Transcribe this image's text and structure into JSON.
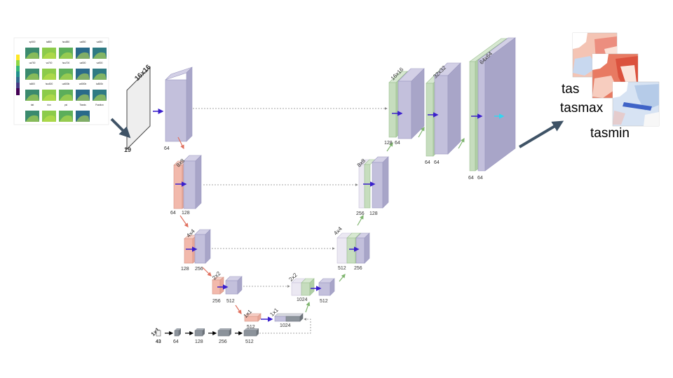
{
  "input": {
    "panel_titles": [
      "sp500",
      "ta850",
      "hus850",
      "ua850",
      "va850",
      "ua700",
      "va700",
      "hus700",
      "ua500",
      "va500",
      "ta500",
      "hus500",
      "ua500b",
      "va500b",
      "ta500b",
      "rlat",
      "rlon",
      "psl",
      "Tlands",
      "Fraction"
    ],
    "size_label": "16x16",
    "channels": "19"
  },
  "encoder": [
    {
      "res": "",
      "in_ch": "64",
      "out_ch": ""
    },
    {
      "res": "8x8",
      "in_ch": "64",
      "out_ch": "128"
    },
    {
      "res": "4x4",
      "in_ch": "128",
      "out_ch": "256"
    },
    {
      "res": "2x2",
      "in_ch": "256",
      "out_ch": "512"
    },
    {
      "res": "1x1",
      "in_ch": "512",
      "out_ch": ""
    }
  ],
  "bottleneck": {
    "res": "1x1",
    "ch": "1024"
  },
  "decoder": [
    {
      "res": "2x2",
      "in_ch": "1024",
      "out_ch": "512"
    },
    {
      "res": "4x4",
      "in_ch": "512",
      "out_ch": "256"
    },
    {
      "res": "8x8",
      "in_ch": "256",
      "out_ch": "128"
    },
    {
      "res": "16x16",
      "in_ch": "128",
      "out_ch": "64"
    },
    {
      "res": "32x32",
      "in_ch": "64",
      "out_ch": "64"
    },
    {
      "res": "64x64",
      "in_ch": "64",
      "out_ch": "64"
    }
  ],
  "mlp": {
    "res": "1x1",
    "input_ch": "43",
    "layers": [
      "64",
      "128",
      "256",
      "512"
    ]
  },
  "outputs": [
    "tas",
    "tasmax",
    "tasmin"
  ],
  "colors": {
    "blue_block": "#c3c0dc",
    "pink_block": "#f2b9ac",
    "green_block": "#c6ddbe",
    "gray_block": "#8c939b",
    "conv_arrow": "#3a1fcc",
    "down_arrow": "#e0705e",
    "up_arrow": "#7fb56f",
    "big_arrow": "#3f5366"
  }
}
